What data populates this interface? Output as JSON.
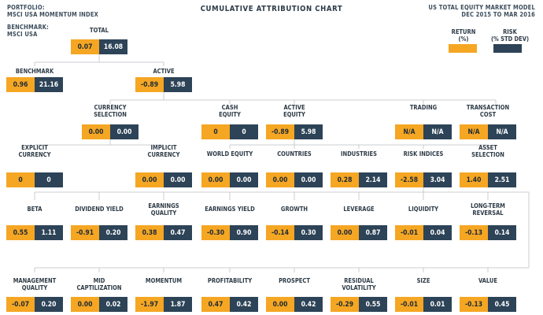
{
  "header": {
    "portfolio_label": "PORTFOLIO:",
    "portfolio_value": "MSCI USA MOMENTUM INDEX",
    "benchmark_label": "BENCHMARK:",
    "benchmark_value": "MSCI USA",
    "title": "CUMULATIVE ATTRIBUTION CHART",
    "model": "US TOTAL EQUITY MARKET MODEL",
    "period": "DEC 2015 TO MAR 2016"
  },
  "legend": {
    "return_label_1": "RETURN",
    "return_label_2": "(%)",
    "risk_label_1": "RISK",
    "risk_label_2": "(% STD DEV)",
    "return_color": "#f5a623",
    "risk_color": "#2d4357"
  },
  "nodes": {
    "total": {
      "label1": "TOTAL",
      "label2": "",
      "ret": "0.07",
      "risk": "16.08"
    },
    "benchmark": {
      "label1": "BENCHMARK",
      "label2": "",
      "ret": "0.96",
      "risk": "21.16"
    },
    "active": {
      "label1": "ACTIVE",
      "label2": "",
      "ret": "-0.89",
      "risk": "5.98"
    },
    "currency_selection": {
      "label1": "CURRENCY",
      "label2": "SELECTION",
      "ret": "0.00",
      "risk": "0.00"
    },
    "cash_equity": {
      "label1": "CASH",
      "label2": "EQUITY",
      "ret": "0",
      "risk": "0"
    },
    "active_equity": {
      "label1": "ACTIVE",
      "label2": "EQUITY",
      "ret": "-0.89",
      "risk": "5.98"
    },
    "trading": {
      "label1": "TRADING",
      "label2": "",
      "ret": "N/A",
      "risk": "N/A"
    },
    "transaction_cost": {
      "label1": "TRANSACTION",
      "label2": "COST",
      "ret": "N/A",
      "risk": "N/A"
    },
    "explicit_currency": {
      "label1": "EXPLICIT",
      "label2": "CURRENCY",
      "ret": "0",
      "risk": "0"
    },
    "implicit_currency": {
      "label1": "IMPLICIT",
      "label2": "CURRENCY",
      "ret": "0.00",
      "risk": "0.00"
    },
    "world_equity": {
      "label1": "WORLD EQUITY",
      "label2": "",
      "ret": "0.00",
      "risk": "0.00"
    },
    "countries": {
      "label1": "COUNTRIES",
      "label2": "",
      "ret": "0.00",
      "risk": "0.00"
    },
    "industries": {
      "label1": "INDUSTRIES",
      "label2": "",
      "ret": "0.28",
      "risk": "2.14"
    },
    "risk_indices": {
      "label1": "RISK INDICES",
      "label2": "",
      "ret": "-2.58",
      "risk": "3.04"
    },
    "asset_selection": {
      "label1": "ASSET",
      "label2": "SELECTION",
      "ret": "1.40",
      "risk": "2.51"
    },
    "beta": {
      "label1": "BETA",
      "label2": "",
      "ret": "0.55",
      "risk": "1.11"
    },
    "dividend_yield": {
      "label1": "DIVIDEND YIELD",
      "label2": "",
      "ret": "-0.91",
      "risk": "0.20"
    },
    "earnings_quality": {
      "label1": "EARNINGS",
      "label2": "QUALITY",
      "ret": "0.38",
      "risk": "0.47"
    },
    "earnings_yield": {
      "label1": "EARNINGS YIELD",
      "label2": "",
      "ret": "-0.30",
      "risk": "0.90"
    },
    "growth": {
      "label1": "GROWTH",
      "label2": "",
      "ret": "-0.14",
      "risk": "0.30"
    },
    "leverage": {
      "label1": "LEVERAGE",
      "label2": "",
      "ret": "0.00",
      "risk": "0.87"
    },
    "liquidity": {
      "label1": "LIQUIDITY",
      "label2": "",
      "ret": "-0.01",
      "risk": "0.04"
    },
    "long_term_reversal": {
      "label1": "LONG-TERM",
      "label2": "REVERSAL",
      "ret": "-0.13",
      "risk": "0.14"
    },
    "management_quality": {
      "label1": "MANAGEMENT",
      "label2": "QUALITY",
      "ret": "-0.07",
      "risk": "0.20"
    },
    "mid_capitalization": {
      "label1": "MID",
      "label2": "CAPTILIZATION",
      "ret": "0.00",
      "risk": "0.02"
    },
    "momentum": {
      "label1": "MOMENTUM",
      "label2": "",
      "ret": "-1.97",
      "risk": "1.87"
    },
    "profitability": {
      "label1": "PROFITABILITY",
      "label2": "",
      "ret": "0.47",
      "risk": "0.42"
    },
    "prospect": {
      "label1": "PROSPECT",
      "label2": "",
      "ret": "0.00",
      "risk": "0.42"
    },
    "residual_volatility": {
      "label1": "RESIDUAL",
      "label2": "VOLATILITY",
      "ret": "-0.29",
      "risk": "0.55"
    },
    "size": {
      "label1": "SIZE",
      "label2": "",
      "ret": "-0.01",
      "risk": "0.01"
    },
    "value": {
      "label1": "VALUE",
      "label2": "",
      "ret": "-0.13",
      "risk": "0.45"
    }
  }
}
